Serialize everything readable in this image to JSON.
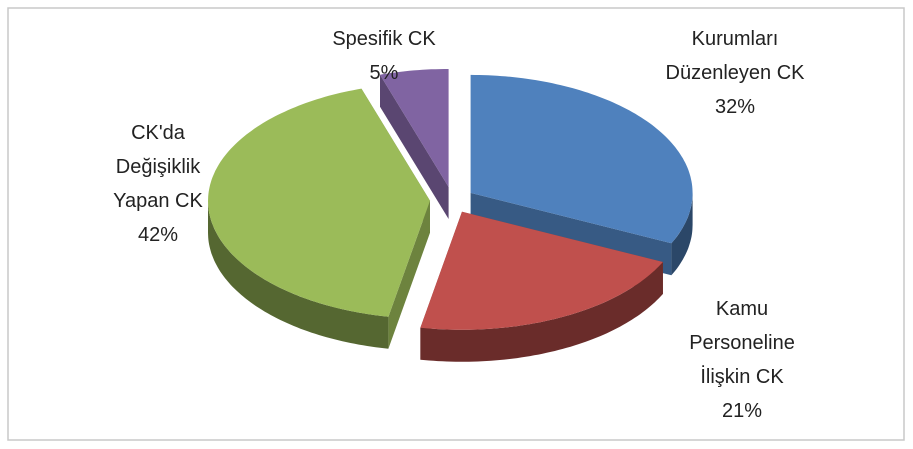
{
  "chart_data": {
    "type": "pie",
    "categories": [
      "Kurumları Düzenleyen CK",
      "Kamu Personeline İlişkin CK",
      "CK'da Değişiklik Yapan CK",
      "Spesifik CK"
    ],
    "values": [
      32,
      21,
      42,
      5
    ],
    "value_labels": [
      "32%",
      "21%",
      "42%",
      "5%"
    ],
    "colors": [
      "#4f81bd",
      "#c0504d",
      "#9bbb59",
      "#8064a2"
    ]
  }
}
